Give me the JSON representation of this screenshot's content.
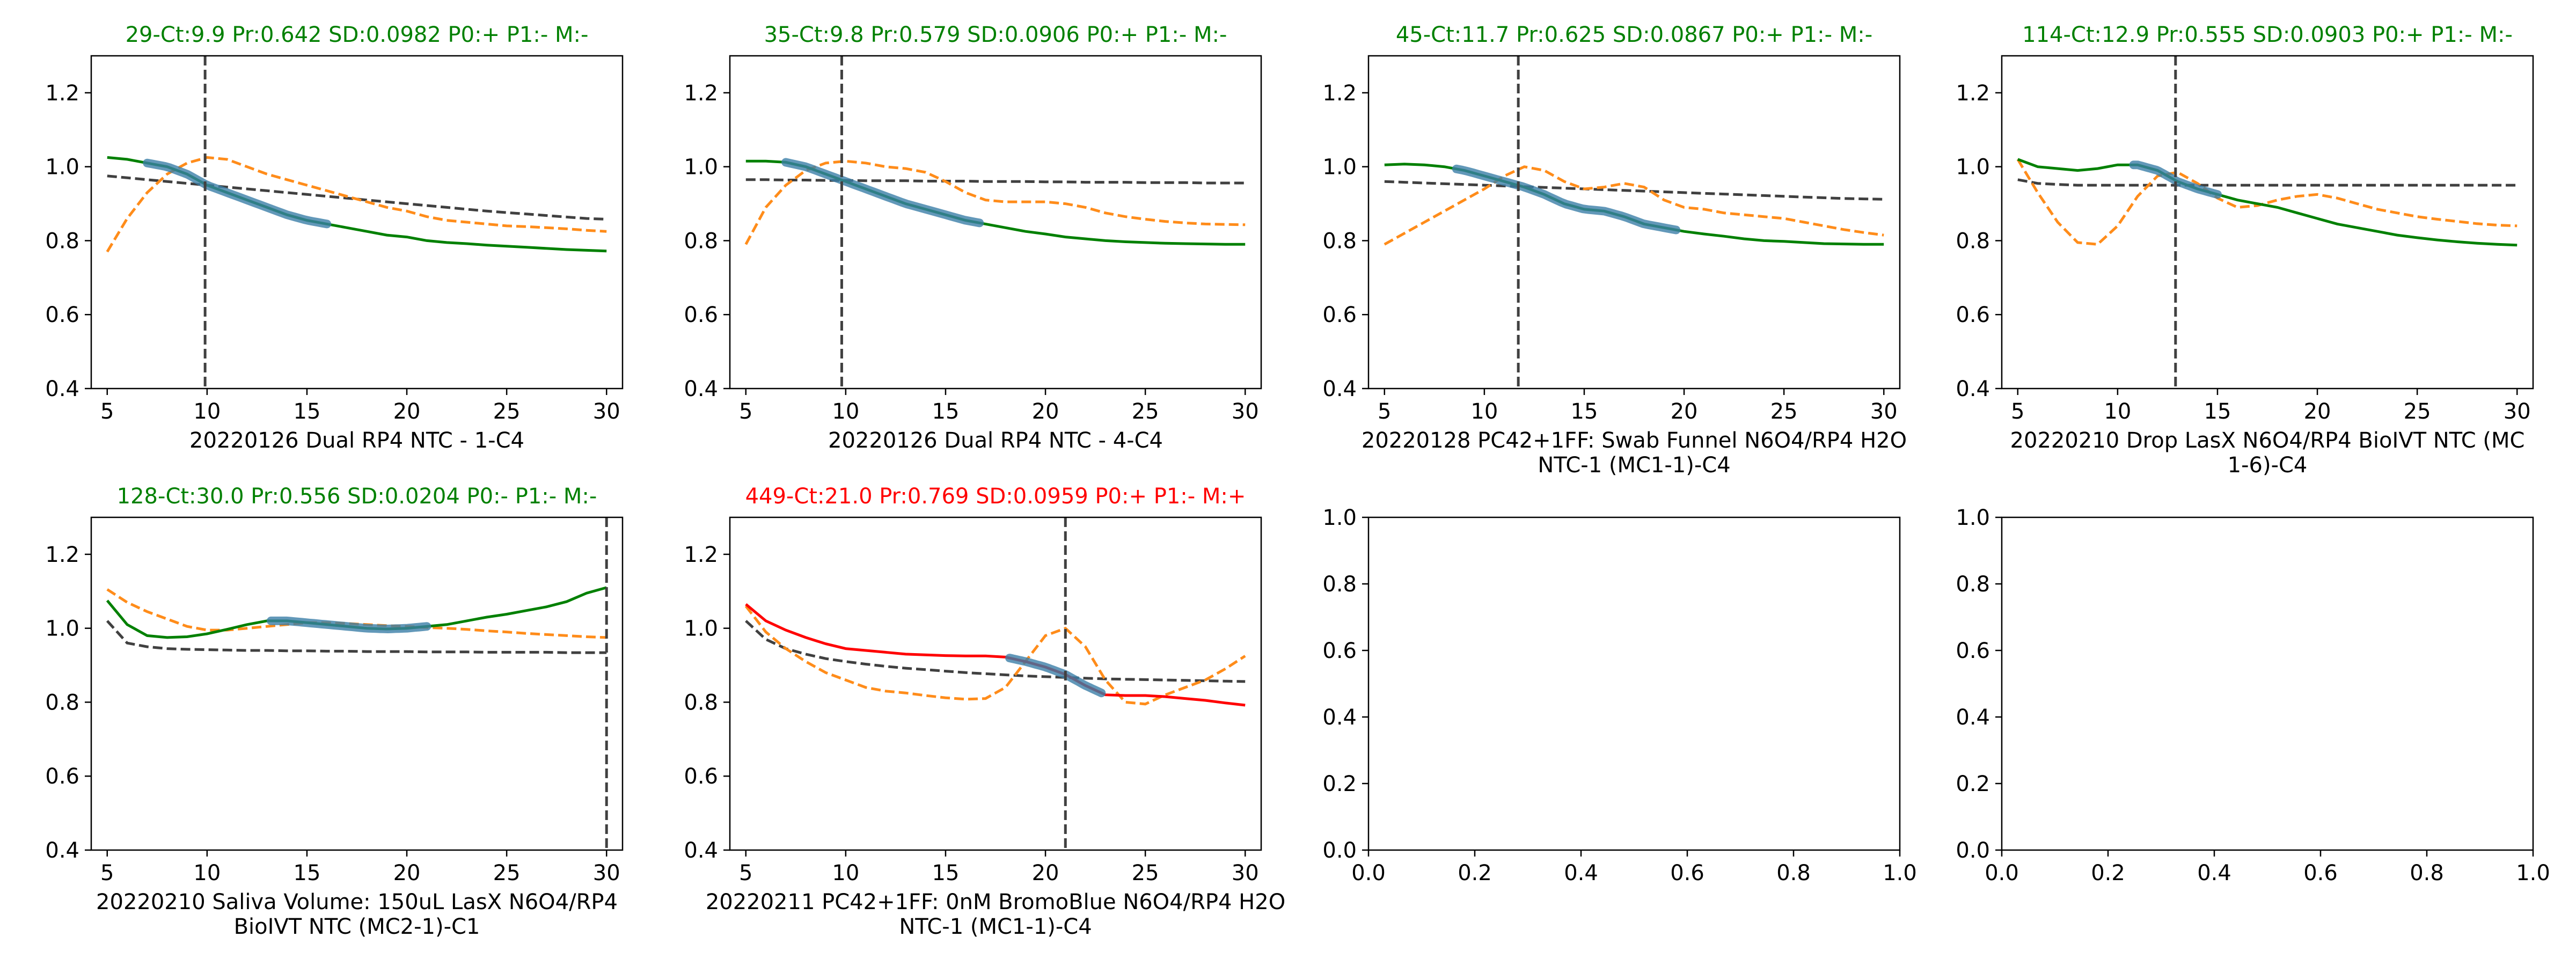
{
  "colors": {
    "ok_title": "#008000",
    "bad_title": "#ff0000",
    "ok_curve": "#008000",
    "bad_curve": "#ff0000",
    "raw_curve": "#ff8c1a",
    "baseline": "#404040",
    "window": "#3b7ea8",
    "ct_line": "#404040"
  },
  "chart_data": [
    {
      "type": "line",
      "title": "29-Ct:9.9 Pr:0.642 SD:0.0982 P0:+ P1:- M:-",
      "title_status": "ok",
      "xlabel_lines": [
        "20220126 Dual RP4 NTC - 1-C4"
      ],
      "xlim": [
        4.2,
        30.8
      ],
      "ylim": [
        0.4,
        1.3
      ],
      "xticks": [
        5,
        10,
        15,
        20,
        25,
        30
      ],
      "yticks": [
        0.4,
        0.6,
        0.8,
        1.0,
        1.2
      ],
      "ct": 9.9,
      "window": [
        7,
        16
      ],
      "x": [
        5,
        6,
        7,
        8,
        9,
        10,
        11,
        12,
        13,
        14,
        15,
        16,
        17,
        18,
        19,
        20,
        21,
        22,
        23,
        24,
        25,
        26,
        27,
        28,
        29,
        30
      ],
      "series": [
        {
          "role": "curve",
          "values": [
            1.025,
            1.02,
            1.01,
            1.0,
            0.98,
            0.95,
            0.93,
            0.91,
            0.89,
            0.87,
            0.855,
            0.845,
            0.835,
            0.825,
            0.815,
            0.81,
            0.8,
            0.795,
            0.792,
            0.788,
            0.785,
            0.782,
            0.779,
            0.776,
            0.774,
            0.772
          ]
        },
        {
          "role": "raw",
          "values": [
            0.77,
            0.86,
            0.93,
            0.98,
            1.01,
            1.025,
            1.02,
            1.0,
            0.98,
            0.965,
            0.95,
            0.935,
            0.92,
            0.905,
            0.89,
            0.88,
            0.865,
            0.855,
            0.85,
            0.845,
            0.84,
            0.838,
            0.835,
            0.832,
            0.828,
            0.825
          ]
        },
        {
          "role": "baseline",
          "values": [
            0.975,
            0.97,
            0.965,
            0.96,
            0.955,
            0.95,
            0.945,
            0.94,
            0.935,
            0.93,
            0.925,
            0.92,
            0.915,
            0.91,
            0.905,
            0.9,
            0.895,
            0.89,
            0.885,
            0.88,
            0.876,
            0.872,
            0.868,
            0.864,
            0.86,
            0.858
          ]
        }
      ]
    },
    {
      "type": "line",
      "title": "35-Ct:9.8 Pr:0.579 SD:0.0906 P0:+ P1:- M:-",
      "title_status": "ok",
      "xlabel_lines": [
        "20220126 Dual RP4 NTC - 4-C4"
      ],
      "xlim": [
        4.2,
        30.8
      ],
      "ylim": [
        0.4,
        1.3
      ],
      "xticks": [
        5,
        10,
        15,
        20,
        25,
        30
      ],
      "yticks": [
        0.4,
        0.6,
        0.8,
        1.0,
        1.2
      ],
      "ct": 9.8,
      "window": [
        7,
        16.7
      ],
      "x": [
        5,
        6,
        7,
        8,
        9,
        10,
        11,
        12,
        13,
        14,
        15,
        16,
        17,
        18,
        19,
        20,
        21,
        22,
        23,
        24,
        25,
        26,
        27,
        28,
        29,
        30
      ],
      "series": [
        {
          "role": "curve",
          "values": [
            1.015,
            1.015,
            1.012,
            1.0,
            0.98,
            0.96,
            0.94,
            0.92,
            0.9,
            0.885,
            0.87,
            0.855,
            0.845,
            0.835,
            0.825,
            0.818,
            0.81,
            0.805,
            0.8,
            0.797,
            0.795,
            0.793,
            0.792,
            0.791,
            0.79,
            0.79
          ]
        },
        {
          "role": "raw",
          "values": [
            0.79,
            0.89,
            0.95,
            0.99,
            1.01,
            1.015,
            1.01,
            1.0,
            0.995,
            0.985,
            0.96,
            0.93,
            0.91,
            0.905,
            0.905,
            0.905,
            0.9,
            0.89,
            0.875,
            0.865,
            0.858,
            0.852,
            0.848,
            0.845,
            0.844,
            0.843
          ]
        },
        {
          "role": "baseline",
          "values": [
            0.965,
            0.965,
            0.964,
            0.964,
            0.963,
            0.963,
            0.962,
            0.962,
            0.962,
            0.961,
            0.961,
            0.961,
            0.96,
            0.96,
            0.96,
            0.959,
            0.959,
            0.958,
            0.958,
            0.958,
            0.957,
            0.957,
            0.957,
            0.956,
            0.956,
            0.956
          ]
        }
      ]
    },
    {
      "type": "line",
      "title": "45-Ct:11.7 Pr:0.625 SD:0.0867 P0:+ P1:- M:-",
      "title_status": "ok",
      "xlabel_lines": [
        "20220128 PC42+1FF: Swab Funnel N6O4/RP4 H2O",
        "NTC-1 (MC1-1)-C4"
      ],
      "xlim": [
        4.2,
        30.8
      ],
      "ylim": [
        0.4,
        1.3
      ],
      "xticks": [
        5,
        10,
        15,
        20,
        25,
        30
      ],
      "yticks": [
        0.4,
        0.6,
        0.8,
        1.0,
        1.2
      ],
      "ct": 11.7,
      "window": [
        8.6,
        19.6
      ],
      "x": [
        5,
        6,
        7,
        8,
        9,
        10,
        11,
        12,
        13,
        14,
        15,
        16,
        17,
        18,
        19,
        20,
        21,
        22,
        23,
        24,
        25,
        26,
        27,
        28,
        29,
        30
      ],
      "series": [
        {
          "role": "curve",
          "values": [
            1.005,
            1.007,
            1.005,
            1.0,
            0.99,
            0.975,
            0.96,
            0.945,
            0.925,
            0.9,
            0.885,
            0.88,
            0.865,
            0.845,
            0.835,
            0.825,
            0.818,
            0.812,
            0.805,
            0.8,
            0.798,
            0.795,
            0.792,
            0.791,
            0.79,
            0.79
          ]
        },
        {
          "role": "raw",
          "values": [
            0.79,
            0.82,
            0.85,
            0.88,
            0.91,
            0.94,
            0.975,
            1.0,
            0.99,
            0.96,
            0.94,
            0.945,
            0.955,
            0.945,
            0.91,
            0.89,
            0.885,
            0.875,
            0.87,
            0.865,
            0.86,
            0.85,
            0.84,
            0.83,
            0.822,
            0.815
          ]
        },
        {
          "role": "baseline",
          "values": [
            0.96,
            0.958,
            0.956,
            0.954,
            0.952,
            0.95,
            0.948,
            0.946,
            0.944,
            0.942,
            0.94,
            0.938,
            0.936,
            0.934,
            0.932,
            0.93,
            0.928,
            0.926,
            0.924,
            0.922,
            0.92,
            0.918,
            0.916,
            0.914,
            0.913,
            0.912
          ]
        }
      ]
    },
    {
      "type": "line",
      "title": "114-Ct:12.9 Pr:0.555 SD:0.0903 P0:+ P1:- M:-",
      "title_status": "ok",
      "xlabel_lines": [
        "20220210 Drop LasX N6O4/RP4 BioIVT NTC (MC",
        "1-6)-C4"
      ],
      "xlim": [
        4.2,
        30.8
      ],
      "ylim": [
        0.4,
        1.3
      ],
      "xticks": [
        5,
        10,
        15,
        20,
        25,
        30
      ],
      "yticks": [
        0.4,
        0.6,
        0.8,
        1.0,
        1.2
      ],
      "ct": 12.9,
      "window": [
        10.8,
        15
      ],
      "x": [
        5,
        6,
        7,
        8,
        9,
        10,
        11,
        12,
        13,
        14,
        15,
        16,
        17,
        18,
        19,
        20,
        21,
        22,
        23,
        24,
        25,
        26,
        27,
        28,
        29,
        30
      ],
      "series": [
        {
          "role": "curve",
          "values": [
            1.02,
            1.0,
            0.995,
            0.99,
            0.995,
            1.005,
            1.005,
            0.99,
            0.96,
            0.94,
            0.925,
            0.91,
            0.9,
            0.89,
            0.875,
            0.86,
            0.845,
            0.835,
            0.825,
            0.815,
            0.808,
            0.802,
            0.797,
            0.793,
            0.79,
            0.788
          ]
        },
        {
          "role": "raw",
          "values": [
            1.02,
            0.93,
            0.85,
            0.795,
            0.79,
            0.84,
            0.92,
            0.975,
            0.985,
            0.955,
            0.915,
            0.89,
            0.895,
            0.91,
            0.92,
            0.925,
            0.915,
            0.9,
            0.885,
            0.875,
            0.865,
            0.858,
            0.852,
            0.846,
            0.842,
            0.84
          ]
        },
        {
          "role": "baseline",
          "values": [
            0.965,
            0.955,
            0.952,
            0.95,
            0.95,
            0.95,
            0.95,
            0.95,
            0.95,
            0.95,
            0.95,
            0.95,
            0.95,
            0.95,
            0.95,
            0.95,
            0.95,
            0.95,
            0.95,
            0.95,
            0.95,
            0.95,
            0.95,
            0.95,
            0.95,
            0.95
          ]
        }
      ]
    },
    {
      "type": "line",
      "title": "128-Ct:30.0 Pr:0.556 SD:0.0204 P0:- P1:- M:-",
      "title_status": "ok",
      "xlabel_lines": [
        "20220210 Saliva Volume: 150uL LasX N6O4/RP4",
        "BioIVT NTC (MC2-1)-C1"
      ],
      "xlim": [
        4.2,
        30.8
      ],
      "ylim": [
        0.4,
        1.3
      ],
      "xticks": [
        5,
        10,
        15,
        20,
        25,
        30
      ],
      "yticks": [
        0.4,
        0.6,
        0.8,
        1.0,
        1.2
      ],
      "ct": 30.0,
      "window": [
        13.2,
        21
      ],
      "x": [
        5,
        6,
        7,
        8,
        9,
        10,
        11,
        12,
        13,
        14,
        15,
        16,
        17,
        18,
        19,
        20,
        21,
        22,
        23,
        24,
        25,
        26,
        27,
        28,
        29,
        30
      ],
      "series": [
        {
          "role": "curve",
          "values": [
            1.075,
            1.01,
            0.98,
            0.975,
            0.977,
            0.985,
            0.997,
            1.01,
            1.02,
            1.02,
            1.015,
            1.01,
            1.005,
            1.0,
            0.998,
            1.0,
            1.005,
            1.01,
            1.02,
            1.03,
            1.038,
            1.048,
            1.058,
            1.072,
            1.095,
            1.11
          ]
        },
        {
          "role": "raw",
          "values": [
            1.105,
            1.07,
            1.045,
            1.025,
            1.005,
            0.995,
            0.995,
            1.0,
            1.005,
            1.01,
            1.015,
            1.015,
            1.013,
            1.01,
            1.007,
            1.005,
            1.002,
            1.0,
            0.997,
            0.993,
            0.99,
            0.986,
            0.983,
            0.98,
            0.977,
            0.975
          ]
        },
        {
          "role": "baseline",
          "values": [
            1.02,
            0.96,
            0.95,
            0.945,
            0.943,
            0.942,
            0.941,
            0.94,
            0.94,
            0.939,
            0.939,
            0.938,
            0.938,
            0.937,
            0.937,
            0.937,
            0.936,
            0.936,
            0.936,
            0.935,
            0.935,
            0.935,
            0.935,
            0.934,
            0.934,
            0.934
          ]
        }
      ]
    },
    {
      "type": "line",
      "title": "449-Ct:21.0 Pr:0.769 SD:0.0959 P0:+ P1:- M:+",
      "title_status": "bad",
      "xlabel_lines": [
        "20220211 PC42+1FF: 0nM BromoBlue N6O4/RP4 H2O",
        "NTC-1 (MC1-1)-C4"
      ],
      "xlim": [
        4.2,
        30.8
      ],
      "ylim": [
        0.4,
        1.3
      ],
      "xticks": [
        5,
        10,
        15,
        20,
        25,
        30
      ],
      "yticks": [
        0.4,
        0.6,
        0.8,
        1.0,
        1.2
      ],
      "ct": 21.0,
      "window": [
        18.2,
        22.8
      ],
      "x": [
        5,
        6,
        7,
        8,
        9,
        10,
        11,
        12,
        13,
        14,
        15,
        16,
        17,
        18,
        19,
        20,
        21,
        22,
        23,
        24,
        25,
        26,
        27,
        28,
        29,
        30
      ],
      "series": [
        {
          "role": "curve",
          "values": [
            1.065,
            1.02,
            0.995,
            0.975,
            0.958,
            0.945,
            0.94,
            0.935,
            0.93,
            0.928,
            0.926,
            0.925,
            0.925,
            0.922,
            0.91,
            0.895,
            0.875,
            0.845,
            0.82,
            0.818,
            0.818,
            0.815,
            0.81,
            0.805,
            0.798,
            0.792
          ]
        },
        {
          "role": "raw",
          "values": [
            1.06,
            0.99,
            0.945,
            0.91,
            0.88,
            0.86,
            0.84,
            0.83,
            0.825,
            0.818,
            0.812,
            0.808,
            0.81,
            0.84,
            0.91,
            0.98,
            1.0,
            0.95,
            0.86,
            0.8,
            0.795,
            0.82,
            0.84,
            0.86,
            0.89,
            0.925
          ]
        },
        {
          "role": "baseline",
          "values": [
            1.02,
            0.97,
            0.945,
            0.93,
            0.918,
            0.91,
            0.903,
            0.897,
            0.892,
            0.888,
            0.884,
            0.88,
            0.877,
            0.874,
            0.871,
            0.869,
            0.867,
            0.865,
            0.863,
            0.862,
            0.861,
            0.86,
            0.859,
            0.858,
            0.857,
            0.856
          ]
        }
      ]
    },
    {
      "type": "line",
      "title": "",
      "title_status": "ok",
      "xlabel_lines": [],
      "xlim": [
        0,
        1
      ],
      "ylim": [
        0,
        1
      ],
      "xticks": [
        0.0,
        0.2,
        0.4,
        0.6,
        0.8,
        1.0
      ],
      "yticks": [
        0.0,
        0.2,
        0.4,
        0.6,
        0.8,
        1.0
      ],
      "ct": null,
      "window": null,
      "x": [],
      "series": []
    },
    {
      "type": "line",
      "title": "",
      "title_status": "ok",
      "xlabel_lines": [],
      "xlim": [
        0,
        1
      ],
      "ylim": [
        0,
        1
      ],
      "xticks": [
        0.0,
        0.2,
        0.4,
        0.6,
        0.8,
        1.0
      ],
      "yticks": [
        0.0,
        0.2,
        0.4,
        0.6,
        0.8,
        1.0
      ],
      "ct": null,
      "window": null,
      "x": [],
      "series": []
    }
  ]
}
